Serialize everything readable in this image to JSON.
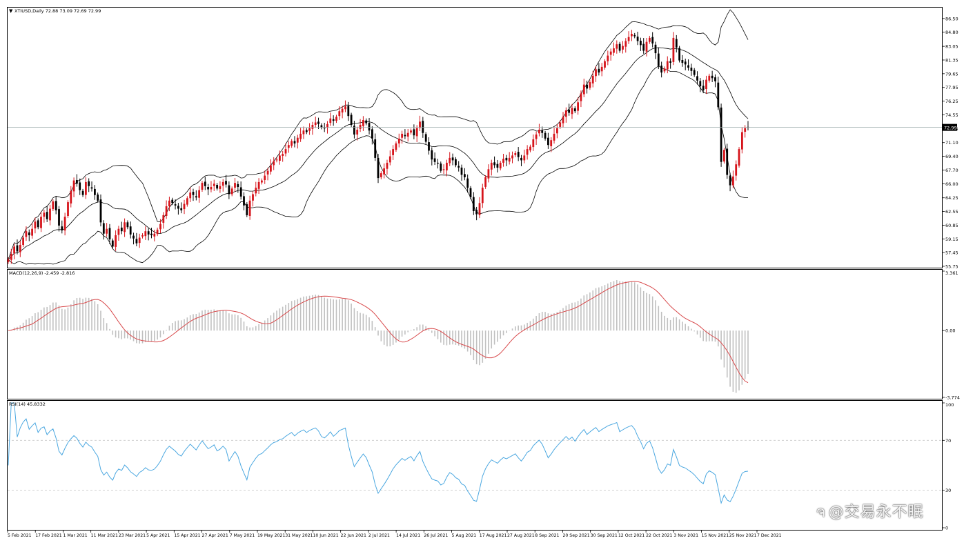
{
  "colors": {
    "bull": "#d6141b",
    "bear": "#000000",
    "bands": "#000000",
    "macd_hist": "#c0c0c0",
    "macd_signal": "#d8484a",
    "rsi_line": "#4aa7e0",
    "level_line": "#c8c8c8",
    "price_line": "#9aa8a8",
    "price_tag_bg": "#000000",
    "price_tag_fg": "#ffffff"
  },
  "main_panel": {
    "title": "XTIUSD,Daily  72.88 73.09 72.69 72.99",
    "collapse_icon": "triangle-down-icon"
  },
  "macd_panel": {
    "title": "MACD(12,26,9) -2.459 -2.816"
  },
  "rsi_panel": {
    "title": "RSI(14) 45.8332"
  },
  "watermark": {
    "logo_icon": "swirl-logo-icon",
    "text": "@交易永不眠"
  },
  "chart_data": [
    {
      "type": "candlestick",
      "title": "XTIUSD,Daily  72.88 73.09 72.69 72.99",
      "last_price": 72.99,
      "ylim": [
        55.75,
        87.0
      ],
      "ytick_labels": [
        "86.50",
        "84.80",
        "83.05",
        "81.35",
        "79.65",
        "77.95",
        "76.25",
        "74.55",
        "72.85",
        "71.10",
        "69.40",
        "67.70",
        "66.00",
        "64.25",
        "62.55",
        "60.85",
        "59.15",
        "57.45",
        "55.75"
      ],
      "x_labels": [
        "5 Feb 2021",
        "17 Feb 2021",
        "1 Mar 2021",
        "11 Mar 2021",
        "23 Mar 2021",
        "5 Apr 2021",
        "15 Apr 2021",
        "27 Apr 2021",
        "7 May 2021",
        "19 May 2021",
        "31 May 2021",
        "10 Jun 2021",
        "22 Jun 2021",
        "2 Jul 2021",
        "14 Jul 2021",
        "26 Jul 2021",
        "5 Aug 2021",
        "17 Aug 2021",
        "27 Aug 2021",
        "8 Sep 2021",
        "20 Sep 2021",
        "30 Sep 2021",
        "12 Oct 2021",
        "22 Oct 2021",
        "3 Nov 2021",
        "15 Nov 2021",
        "25 Nov 2021",
        "7 Dec 2021"
      ],
      "bollinger": {
        "period": 20,
        "upper": "upper band",
        "middle": "middle band",
        "lower": "lower band"
      },
      "close": [
        56.6,
        57.3,
        58.2,
        57.6,
        58.4,
        59.3,
        60.1,
        59.6,
        60.4,
        61.3,
        60.6,
        61.9,
        62.4,
        61.6,
        62.9,
        63.8,
        62.7,
        60.8,
        60.2,
        61.9,
        63.7,
        65.1,
        66.4,
        66.0,
        65.2,
        64.6,
        66.2,
        65.7,
        65.4,
        64.6,
        63.9,
        61.2,
        59.8,
        60.4,
        59.1,
        58.2,
        59.6,
        60.4,
        60.1,
        61.2,
        60.6,
        59.7,
        59.2,
        58.6,
        59.3,
        59.6,
        60.1,
        59.7,
        59.6,
        59.8,
        60.3,
        61.0,
        62.1,
        63.2,
        63.9,
        63.6,
        63.3,
        62.9,
        62.7,
        63.5,
        64.2,
        64.9,
        64.6,
        64.3,
        65.2,
        66.1,
        65.7,
        65.3,
        65.6,
        66.0,
        65.4,
        65.7,
        66.2,
        65.9,
        64.7,
        65.4,
        66.1,
        65.6,
        64.4,
        63.3,
        62.1,
        63.9,
        64.7,
        65.5,
        66.2,
        66.4,
        67.0,
        67.6,
        68.3,
        68.8,
        69.0,
        69.5,
        69.7,
        70.3,
        70.8,
        71.3,
        71.0,
        71.7,
        72.2,
        72.6,
        72.4,
        72.9,
        73.3,
        73.6,
        73.4,
        73.0,
        72.9,
        73.4,
        74.1,
        73.8,
        74.3,
        75.0,
        75.3,
        75.6,
        74.4,
        73.3,
        72.1,
        72.7,
        73.3,
        73.9,
        73.5,
        72.6,
        71.6,
        69.2,
        66.7,
        67.3,
        67.9,
        68.6,
        69.4,
        70.3,
        71.0,
        71.6,
        72.2,
        71.9,
        72.3,
        72.6,
        72.0,
        72.9,
        73.7,
        72.3,
        71.2,
        70.1,
        69.0,
        68.7,
        68.5,
        67.6,
        67.8,
        68.6,
        69.2,
        68.9,
        68.3,
        68.0,
        67.1,
        66.8,
        65.5,
        64.3,
        62.6,
        62.2,
        63.6,
        65.5,
        66.8,
        67.8,
        68.6,
        68.3,
        68.0,
        68.6,
        69.1,
        68.9,
        69.2,
        69.5,
        69.8,
        69.3,
        68.9,
        69.5,
        70.3,
        70.6,
        71.5,
        72.1,
        72.7,
        72.3,
        71.6,
        70.8,
        71.4,
        72.2,
        72.9,
        73.6,
        74.3,
        75.1,
        74.8,
        75.4,
        75.0,
        76.1,
        77.2,
        78.3,
        77.8,
        78.6,
        79.4,
        80.2,
        79.8,
        80.5,
        81.2,
        81.9,
        82.4,
        82.8,
        83.3,
        82.5,
        83.1,
        83.7,
        84.2,
        84.6,
        84.3,
        83.7,
        83.2,
        82.5,
        83.6,
        84.1,
        83.4,
        82.2,
        80.6,
        79.8,
        80.3,
        81.2,
        81.0,
        84.1,
        82.9,
        81.3,
        81.0,
        80.8,
        80.4,
        80.0,
        79.5,
        78.8,
        78.1,
        77.6,
        78.9,
        79.4,
        79.1,
        78.7,
        75.5,
        68.7,
        70.2,
        67.1,
        65.8,
        66.9,
        68.4,
        70.3,
        72.4,
        72.9,
        72.99
      ]
    },
    {
      "type": "bar+line",
      "title": "MACD(12,26,9) -2.459 -2.816",
      "ylim": [
        -3.774,
        3.361
      ],
      "ytick_labels": [
        "3.361",
        "0.00",
        "-3.774"
      ],
      "series": [
        {
          "name": "MACD(12,26,9)",
          "kind": "histogram"
        },
        {
          "name": "Signal",
          "kind": "line"
        }
      ],
      "last_values": {
        "macd": -2.459,
        "signal": -2.816
      }
    },
    {
      "type": "line",
      "title": "RSI(14) 45.8332",
      "ylim": [
        0,
        100
      ],
      "ytick_labels": [
        "100",
        "70",
        "30",
        "0"
      ],
      "levels": [
        70,
        30
      ],
      "last_value": 45.8332
    }
  ]
}
